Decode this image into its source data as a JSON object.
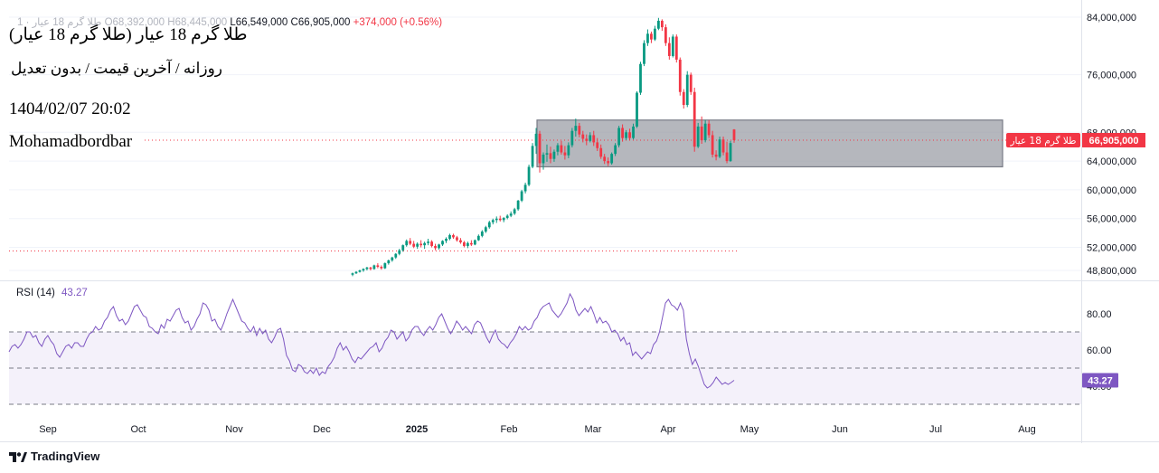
{
  "header": {
    "ohlc_prefix": "طلا گرم 18 عیار · 1",
    "open": "O68,392,000",
    "high": "H68,445,000",
    "low": "L66,549,000",
    "close": "C66,905,000",
    "change": "+374,000 (+0.56%)"
  },
  "annotations": {
    "symbol_title": "طلا گرم 18 عیار (طلا گرم 18 عیار)",
    "subtitle": "روزانه / آخرین قیمت / بدون تعدیل",
    "datetime": "1404/02/07 20:02",
    "author": "Mohamadbordbar"
  },
  "price_tag": {
    "name": "طلا گرم 18 عیار",
    "value": "66,905,000"
  },
  "rsi_legend": {
    "label": "RSI (14)",
    "value": "43.27"
  },
  "rsi_tag": "43.27",
  "branding": {
    "name": "TradingView"
  },
  "colors": {
    "up": "#089981",
    "down": "#f23645",
    "rsi_line": "#7e57c2",
    "zone_fill": "#9598a1",
    "band_fill": "#ede7f6"
  },
  "chart_data": [
    {
      "type": "candlestick",
      "y_ticks": [
        84000000,
        76000000,
        68000000,
        64000000,
        60000000,
        56000000,
        52000000,
        48800000
      ],
      "y_tick_labels": [
        "84,000,000",
        "76,000,000",
        "68,000,000",
        "64,000,000",
        "60,000,000",
        "56,000,000",
        "52,000,000",
        "48,800,000"
      ],
      "ylim": [
        48000000,
        85500000
      ],
      "x_labels": [
        "Sep",
        "Oct",
        "Nov",
        "Dec",
        "2025",
        "Feb",
        "Mar",
        "Apr",
        "May",
        "Jun",
        "Jul",
        "Aug"
      ],
      "last_price": 66905000,
      "reference_line": 51500000,
      "zone": {
        "x_start": "2025-02-10",
        "x_end": "2025-07-25",
        "y_low": 63200000,
        "y_high": 69700000
      },
      "series": [
        {
          "ohlc": [
            [
              48200000,
              48500000,
              48000000,
              48400000
            ],
            [
              48400000,
              48700000,
              48300000,
              48600000
            ],
            [
              48600000,
              48900000,
              48500000,
              48800000
            ],
            [
              48800000,
              49100000,
              48600000,
              49000000
            ],
            [
              49000000,
              49300000,
              48800000,
              49200000
            ],
            [
              49200000,
              49300000,
              48800000,
              49000000
            ],
            [
              49000000,
              49600000,
              48900000,
              49500000
            ],
            [
              49500000,
              49800000,
              49100000,
              49300000
            ],
            [
              49300000,
              49500000,
              48900000,
              49100000
            ],
            [
              49100000,
              49900000,
              49000000,
              49800000
            ],
            [
              49800000,
              50300000,
              49600000,
              50200000
            ],
            [
              50200000,
              50700000,
              50000000,
              50600000
            ],
            [
              50600000,
              51200000,
              50400000,
              51100000
            ],
            [
              51100000,
              51800000,
              50900000,
              51600000
            ],
            [
              51600000,
              52400000,
              51400000,
              52300000
            ],
            [
              52300000,
              53100000,
              52100000,
              52900000
            ],
            [
              52900000,
              53300000,
              52300000,
              52500000
            ],
            [
              52500000,
              52900000,
              51900000,
              52100000
            ],
            [
              52100000,
              52700000,
              51800000,
              52500000
            ],
            [
              52500000,
              53000000,
              52000000,
              52300000
            ],
            [
              52300000,
              52800000,
              51800000,
              52600000
            ],
            [
              52600000,
              53200000,
              52300000,
              52800000
            ],
            [
              52800000,
              53000000,
              52000000,
              52200000
            ],
            [
              52200000,
              52500000,
              51600000,
              51900000
            ],
            [
              51900000,
              52500000,
              51700000,
              52400000
            ],
            [
              52400000,
              53000000,
              52200000,
              52900000
            ],
            [
              52900000,
              53400000,
              52600000,
              53200000
            ],
            [
              53200000,
              53900000,
              53000000,
              53700000
            ],
            [
              53700000,
              53900000,
              53200000,
              53400000
            ],
            [
              53400000,
              53600000,
              52800000,
              53000000
            ],
            [
              53000000,
              53300000,
              52500000,
              52700000
            ],
            [
              52700000,
              52900000,
              52000000,
              52200000
            ],
            [
              52200000,
              52800000,
              51900000,
              52600000
            ],
            [
              52600000,
              53000000,
              52200000,
              52400000
            ],
            [
              52400000,
              53100000,
              52300000,
              53000000
            ],
            [
              53000000,
              53800000,
              52900000,
              53600000
            ],
            [
              53600000,
              54400000,
              53400000,
              54200000
            ],
            [
              54200000,
              55000000,
              54000000,
              54800000
            ],
            [
              54800000,
              55700000,
              54600000,
              55500000
            ],
            [
              55500000,
              56000000,
              55200000,
              55800000
            ],
            [
              55800000,
              56300000,
              55400000,
              56000000
            ],
            [
              56000000,
              56400000,
              55600000,
              55800000
            ],
            [
              55800000,
              56200000,
              55500000,
              56100000
            ],
            [
              56100000,
              56600000,
              55900000,
              56400000
            ],
            [
              56400000,
              57000000,
              56200000,
              56700000
            ],
            [
              56700000,
              57500000,
              56500000,
              57300000
            ],
            [
              57300000,
              58600000,
              57100000,
              58500000
            ],
            [
              58500000,
              60000000,
              58300000,
              59800000
            ],
            [
              59800000,
              61000000,
              59500000,
              60700000
            ],
            [
              60700000,
              63500000,
              60500000,
              63200000
            ],
            [
              63200000,
              66500000,
              63000000,
              66100000
            ],
            [
              66100000,
              68600000,
              65000000,
              67800000
            ],
            [
              67800000,
              68200000,
              62400000,
              63700000
            ],
            [
              63700000,
              65200000,
              62800000,
              64900000
            ],
            [
              64900000,
              66300000,
              63900000,
              65100000
            ],
            [
              65100000,
              66000000,
              63700000,
              64300000
            ],
            [
              64300000,
              65600000,
              63900000,
              65300000
            ],
            [
              65300000,
              66500000,
              64800000,
              66200000
            ],
            [
              66200000,
              66800000,
              64900000,
              65200000
            ],
            [
              65200000,
              66100000,
              64200000,
              64800000
            ],
            [
              64800000,
              66600000,
              64400000,
              66200000
            ],
            [
              66200000,
              68600000,
              65900000,
              68200000
            ],
            [
              68200000,
              69900000,
              67400000,
              68900000
            ],
            [
              68900000,
              69300000,
              67300000,
              67700000
            ],
            [
              67700000,
              68200000,
              66600000,
              67100000
            ],
            [
              67100000,
              67700000,
              66200000,
              66800000
            ],
            [
              66800000,
              68000000,
              66600000,
              67600000
            ],
            [
              67600000,
              68200000,
              66100000,
              66600000
            ],
            [
              66600000,
              67200000,
              65400000,
              65800000
            ],
            [
              65800000,
              66300000,
              64300000,
              64600000
            ],
            [
              64600000,
              65000000,
              63600000,
              64000000
            ],
            [
              64000000,
              64500000,
              63300000,
              63700000
            ],
            [
              63700000,
              65200000,
              63500000,
              65000000
            ],
            [
              65000000,
              66500000,
              64700000,
              66200000
            ],
            [
              66200000,
              68900000,
              65900000,
              68600000
            ],
            [
              68600000,
              69100000,
              66700000,
              67200000
            ],
            [
              67200000,
              68300000,
              66900000,
              68000000
            ],
            [
              68000000,
              68500000,
              66900000,
              67200000
            ],
            [
              67200000,
              69200000,
              67000000,
              68800000
            ],
            [
              68800000,
              73700000,
              68600000,
              73500000
            ],
            [
              73500000,
              77800000,
              73200000,
              77500000
            ],
            [
              77500000,
              80800000,
              77200000,
              80400000
            ],
            [
              80400000,
              82300000,
              80000000,
              81700000
            ],
            [
              81700000,
              82000000,
              80400000,
              80900000
            ],
            [
              80900000,
              82800000,
              80700000,
              82400000
            ],
            [
              82400000,
              83900000,
              82200000,
              83500000
            ],
            [
              83500000,
              83700000,
              82100000,
              82600000
            ],
            [
              82600000,
              83000000,
              80000000,
              80400000
            ],
            [
              80400000,
              81200000,
              78100000,
              78600000
            ],
            [
              78600000,
              81600000,
              78400000,
              81300000
            ],
            [
              81300000,
              81600000,
              77700000,
              78100000
            ],
            [
              78100000,
              78400000,
              73100000,
              73600000
            ],
            [
              73600000,
              74000000,
              71300000,
              71800000
            ],
            [
              71800000,
              76500000,
              71500000,
              76000000
            ],
            [
              76000000,
              76300000,
              73200000,
              73600000
            ],
            [
              73600000,
              74200000,
              65300000,
              66000000
            ],
            [
              66000000,
              69300000,
              65800000,
              68800000
            ],
            [
              68800000,
              70200000,
              66400000,
              66900000
            ],
            [
              66900000,
              69700000,
              66600000,
              69200000
            ],
            [
              69200000,
              69700000,
              67200000,
              67600000
            ],
            [
              67600000,
              68200000,
              64500000,
              64900000
            ],
            [
              64900000,
              65500000,
              64100000,
              64600000
            ],
            [
              64600000,
              67400000,
              64400000,
              67000000
            ],
            [
              67000000,
              67400000,
              64800000,
              65200000
            ],
            [
              65200000,
              66700000,
              63700000,
              64000000
            ],
            [
              64000000,
              66800000,
              63900000,
              66500000
            ],
            [
              68392000,
              68445000,
              66549000,
              66905000
            ]
          ]
        }
      ]
    },
    {
      "type": "line",
      "title": "RSI (14)",
      "y_ticks": [
        80,
        60,
        40
      ],
      "y_tick_labels": [
        "80.00",
        "60.00",
        "40.00"
      ],
      "ylim": [
        28,
        92
      ],
      "band": [
        30,
        70
      ],
      "midline": 50,
      "last_value": 43.27,
      "series": [
        {
          "name": "RSI (14)",
          "values": [
            59,
            62,
            63,
            61,
            63,
            66,
            70,
            70,
            67,
            68,
            64,
            62,
            66,
            68,
            65,
            63,
            58,
            56,
            59,
            62,
            63,
            61,
            64,
            64,
            62,
            62,
            66,
            69,
            70,
            73,
            71,
            72,
            76,
            78,
            82,
            84,
            79,
            76,
            77,
            74,
            76,
            80,
            84,
            85,
            82,
            79,
            78,
            73,
            72,
            70,
            69,
            74,
            72,
            77,
            76,
            79,
            82,
            83,
            78,
            75,
            76,
            71,
            73,
            77,
            80,
            86,
            85,
            82,
            76,
            77,
            73,
            71,
            75,
            80,
            84,
            88,
            84,
            80,
            76,
            75,
            72,
            70,
            73,
            68,
            72,
            69,
            71,
            66,
            64,
            67,
            71,
            72,
            66,
            57,
            54,
            49,
            48,
            52,
            51,
            48,
            47,
            49,
            47,
            50,
            46,
            48,
            47,
            51,
            53,
            56,
            61,
            64,
            60,
            62,
            59,
            55,
            53,
            56,
            55,
            57,
            59,
            61,
            62,
            64,
            59,
            61,
            65,
            67,
            71,
            70,
            66,
            68,
            70,
            65,
            67,
            71,
            73,
            73,
            70,
            68,
            71,
            73,
            71,
            74,
            78,
            80,
            76,
            72,
            69,
            72,
            76,
            74,
            71,
            73,
            71,
            69,
            74,
            76,
            75,
            71,
            67,
            64,
            68,
            71,
            66,
            64,
            63,
            61,
            64,
            66,
            69,
            73,
            71,
            73,
            71,
            72,
            76,
            78,
            82,
            84,
            85,
            86,
            82,
            80,
            78,
            80,
            83,
            86,
            91,
            88,
            82,
            79,
            81,
            83,
            81,
            84,
            80,
            75,
            78,
            75,
            76,
            74,
            70,
            71,
            69,
            65,
            67,
            63,
            64,
            57,
            59,
            57,
            55,
            57,
            59,
            58,
            63,
            65,
            70,
            78,
            86,
            88,
            85,
            84,
            82,
            86,
            82,
            66,
            58,
            52,
            55,
            51,
            46,
            41,
            39,
            40,
            42,
            45,
            43,
            41,
            42,
            41,
            42,
            43.27
          ]
        }
      ]
    }
  ]
}
